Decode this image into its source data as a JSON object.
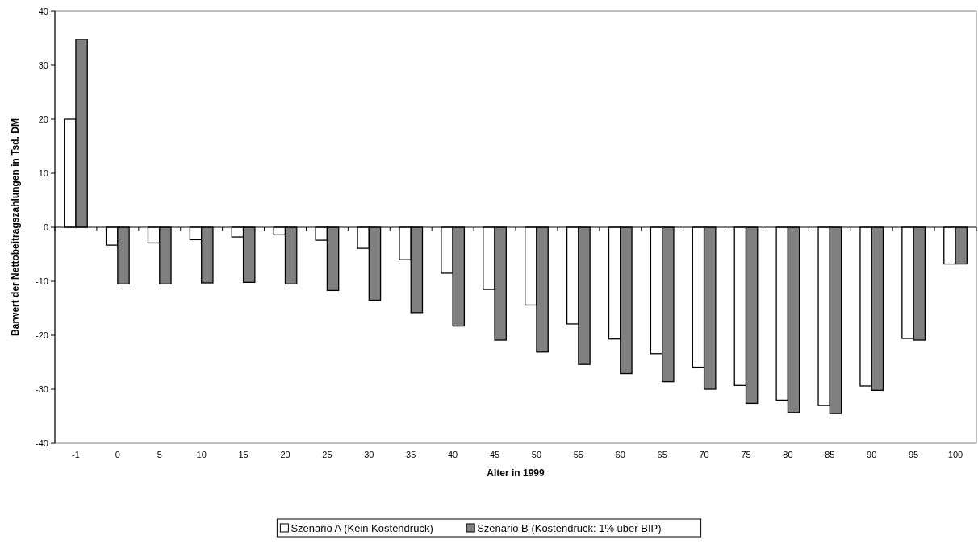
{
  "chart_data": {
    "type": "bar",
    "xlabel": "Alter in 1999",
    "ylabel": "Barwert der Nettobeitragszahlungen in Tsd. DM",
    "categories": [
      "-1",
      "0",
      "5",
      "10",
      "15",
      "20",
      "25",
      "30",
      "35",
      "40",
      "45",
      "50",
      "55",
      "60",
      "65",
      "70",
      "75",
      "80",
      "85",
      "90",
      "95",
      "100"
    ],
    "series": [
      {
        "name": "Szenario A (Kein Kostendruck)",
        "color": "#ffffff",
        "values": [
          20,
          -3.3,
          -2.9,
          -2.3,
          -1.8,
          -1.4,
          -2.4,
          -3.9,
          -6,
          -8.5,
          -11.5,
          -14.4,
          -17.9,
          -20.7,
          -23.4,
          -25.9,
          -29.3,
          -32,
          -33,
          -29.4,
          -20.6,
          -6.8
        ]
      },
      {
        "name": "Szenario B (Kostendruck: 1% über BIP)",
        "color": "#808080",
        "values": [
          34.8,
          -10.5,
          -10.5,
          -10.3,
          -10.2,
          -10.5,
          -11.7,
          -13.5,
          -15.8,
          -18.3,
          -20.9,
          -23.1,
          -25.4,
          -27.1,
          -28.6,
          -30,
          -32.6,
          -34.3,
          -34.5,
          -30.2,
          -20.9,
          -6.8
        ]
      }
    ],
    "ylim": [
      -40,
      40
    ],
    "yticks": [
      -40,
      -30,
      -20,
      -10,
      0,
      10,
      20,
      30,
      40
    ],
    "legend": "bottom"
  }
}
